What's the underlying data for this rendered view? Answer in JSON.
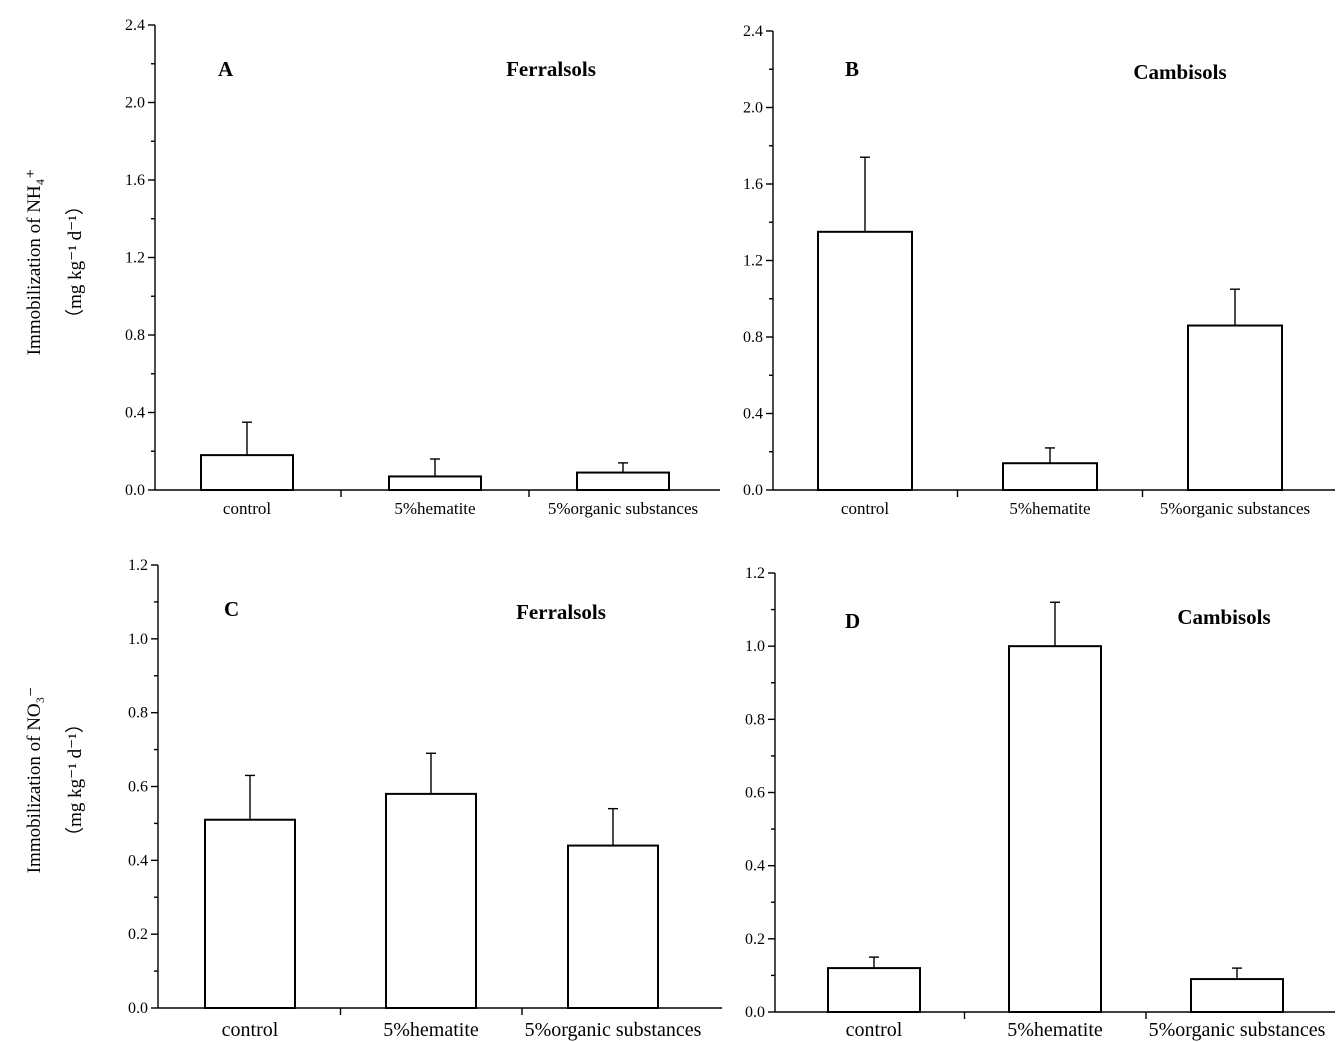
{
  "y_labels": {
    "top": {
      "line1": "Immobilization of  NH₄⁺",
      "line2": "（mg kg⁻¹ d⁻¹）"
    },
    "bottom": {
      "line1": "Immobilization of  NO₃⁻",
      "line2": "（mg kg⁻¹ d⁻¹）"
    }
  },
  "chart_data": [
    {
      "type": "bar",
      "panel": "A",
      "annotation": "Ferralsols",
      "categories": [
        "control",
        "5%hematite",
        "5%organic substances"
      ],
      "values": [
        0.18,
        0.07,
        0.09
      ],
      "errors": [
        0.17,
        0.09,
        0.05
      ],
      "ylim": [
        0,
        2.4
      ],
      "yticks": [
        "0.0",
        "0.4",
        "0.8",
        "1.2",
        "1.6",
        "2.0",
        "2.4"
      ]
    },
    {
      "type": "bar",
      "panel": "B",
      "annotation": "Cambisols",
      "categories": [
        "control",
        "5%hematite",
        "5%organic substances"
      ],
      "values": [
        1.35,
        0.14,
        0.86
      ],
      "errors": [
        0.39,
        0.08,
        0.19
      ],
      "ylim": [
        0,
        2.4
      ],
      "yticks": [
        "0.0",
        "0.4",
        "0.8",
        "1.2",
        "1.6",
        "2.0",
        "2.4"
      ]
    },
    {
      "type": "bar",
      "panel": "C",
      "annotation": "Ferralsols",
      "categories": [
        "control",
        "5%hematite",
        "5%organic substances"
      ],
      "values": [
        0.51,
        0.58,
        0.44
      ],
      "errors": [
        0.12,
        0.11,
        0.1
      ],
      "ylim": [
        0,
        1.2
      ],
      "yticks": [
        "0.0",
        "0.2",
        "0.4",
        "0.6",
        "0.8",
        "1.0",
        "1.2"
      ]
    },
    {
      "type": "bar",
      "panel": "D",
      "annotation": "Cambisols",
      "categories": [
        "control",
        "5%hematite",
        "5%organic substances"
      ],
      "values": [
        0.12,
        1.0,
        0.09
      ],
      "errors": [
        0.03,
        0.12,
        0.03
      ],
      "ylim": [
        0,
        1.2
      ],
      "yticks": [
        "0.0",
        "0.2",
        "0.4",
        "0.6",
        "0.8",
        "1.0",
        "1.2"
      ]
    }
  ]
}
